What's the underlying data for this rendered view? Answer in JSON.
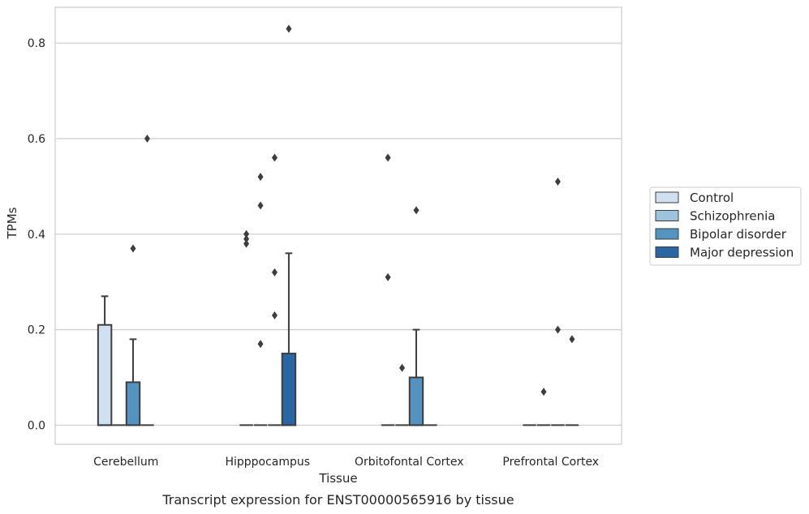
{
  "chart_data": {
    "type": "box",
    "caption": "Transcript expression for ENST00000565916 by tissue",
    "xlabel": "Tissue",
    "ylabel": "TPMs",
    "ylim": [
      -0.04,
      0.875
    ],
    "yticks": [
      "0.0",
      "0.2",
      "0.4",
      "0.6",
      "0.8"
    ],
    "ytick_values": [
      0.0,
      0.2,
      0.4,
      0.6,
      0.8
    ],
    "grid": "horizontal",
    "legend_position": "right",
    "categories": [
      "Cerebellum",
      "Hipppocampus",
      "Orbitofontal Cortex",
      "Prefrontal Cortex"
    ],
    "series": [
      {
        "name": "Control",
        "color": "#d1e0f0",
        "boxes": [
          {
            "q1": 0.0,
            "median": 0.0,
            "q3": 0.21,
            "whisker_low": 0.0,
            "whisker_high": 0.27,
            "outliers": []
          },
          {
            "q1": 0.0,
            "median": 0.0,
            "q3": 0.0,
            "whisker_low": 0.0,
            "whisker_high": 0.0,
            "outliers": [
              0.38,
              0.39,
              0.4
            ]
          },
          {
            "q1": 0.0,
            "median": 0.0,
            "q3": 0.0,
            "whisker_low": 0.0,
            "whisker_high": 0.0,
            "outliers": [
              0.31,
              0.56
            ]
          },
          {
            "q1": 0.0,
            "median": 0.0,
            "q3": 0.0,
            "whisker_low": 0.0,
            "whisker_high": 0.0,
            "outliers": []
          }
        ]
      },
      {
        "name": "Schizophrenia",
        "color": "#9dc3dd",
        "boxes": [
          {
            "q1": 0.0,
            "median": 0.0,
            "q3": 0.0,
            "whisker_low": 0.0,
            "whisker_high": 0.0,
            "outliers": []
          },
          {
            "q1": 0.0,
            "median": 0.0,
            "q3": 0.0,
            "whisker_low": 0.0,
            "whisker_high": 0.0,
            "outliers": [
              0.17,
              0.46,
              0.52
            ]
          },
          {
            "q1": 0.0,
            "median": 0.0,
            "q3": 0.0,
            "whisker_low": 0.0,
            "whisker_high": 0.0,
            "outliers": [
              0.12
            ]
          },
          {
            "q1": 0.0,
            "median": 0.0,
            "q3": 0.0,
            "whisker_low": 0.0,
            "whisker_high": 0.0,
            "outliers": [
              0.07
            ]
          }
        ]
      },
      {
        "name": "Bipolar disorder",
        "color": "#5493c0",
        "boxes": [
          {
            "q1": 0.0,
            "median": 0.0,
            "q3": 0.09,
            "whisker_low": 0.0,
            "whisker_high": 0.18,
            "outliers": [
              0.37
            ]
          },
          {
            "q1": 0.0,
            "median": 0.0,
            "q3": 0.0,
            "whisker_low": 0.0,
            "whisker_high": 0.0,
            "outliers": [
              0.23,
              0.32,
              0.56
            ]
          },
          {
            "q1": 0.0,
            "median": 0.0,
            "q3": 0.1,
            "whisker_low": 0.0,
            "whisker_high": 0.2,
            "outliers": [
              0.45
            ]
          },
          {
            "q1": 0.0,
            "median": 0.0,
            "q3": 0.0,
            "whisker_low": 0.0,
            "whisker_high": 0.0,
            "outliers": [
              0.2,
              0.51
            ]
          }
        ]
      },
      {
        "name": "Major depression",
        "color": "#2a66a3",
        "boxes": [
          {
            "q1": 0.0,
            "median": 0.0,
            "q3": 0.0,
            "whisker_low": 0.0,
            "whisker_high": 0.0,
            "outliers": [
              0.6
            ]
          },
          {
            "q1": 0.0,
            "median": 0.0,
            "q3": 0.15,
            "whisker_low": 0.0,
            "whisker_high": 0.36,
            "outliers": [
              0.83
            ]
          },
          {
            "q1": 0.0,
            "median": 0.0,
            "q3": 0.0,
            "whisker_low": 0.0,
            "whisker_high": 0.0,
            "outliers": []
          },
          {
            "q1": 0.0,
            "median": 0.0,
            "q3": 0.0,
            "whisker_low": 0.0,
            "whisker_high": 0.0,
            "outliers": [
              0.18
            ]
          }
        ]
      }
    ]
  }
}
